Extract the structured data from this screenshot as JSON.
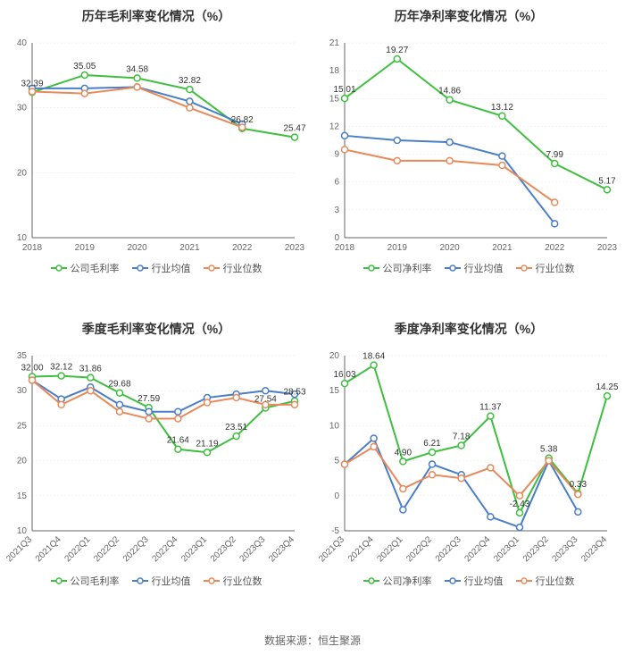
{
  "source_text": "数据来源：恒生聚源",
  "colors": {
    "company": "#3fbf3f",
    "industry_mean": "#4a7ec8",
    "industry_median": "#e8895a",
    "axis": "#666666",
    "grid": "#e6e6e6",
    "text": "#333333",
    "bg": "#ffffff"
  },
  "title_fontsize": 14,
  "tick_fontsize": 10,
  "legend_fontsize": 11,
  "marker_radius": 3.5,
  "line_width": 2,
  "panels": [
    {
      "id": "p1",
      "title": "历年毛利率变化情况（%）",
      "legend": [
        "公司毛利率",
        "行业均值",
        "行业位数"
      ],
      "x_labels": [
        "2018",
        "2019",
        "2020",
        "2021",
        "2022",
        "2023"
      ],
      "x_rotate": 0,
      "y_min": 10,
      "y_max": 40,
      "y_step": 10,
      "label_series_index": 0,
      "point_labels": [
        "32.39",
        "35.05",
        "34.58",
        "32.82",
        "26.82",
        "25.47"
      ],
      "series": [
        {
          "color_key": "company",
          "values": [
            32.39,
            35.05,
            34.58,
            32.82,
            26.82,
            25.47
          ]
        },
        {
          "color_key": "industry_mean",
          "values": [
            33.0,
            33.0,
            33.2,
            31.0,
            27.5,
            null
          ]
        },
        {
          "color_key": "industry_median",
          "values": [
            32.5,
            32.2,
            33.2,
            30.0,
            27.0,
            null
          ]
        }
      ]
    },
    {
      "id": "p2",
      "title": "历年净利率变化情况（%）",
      "legend": [
        "公司净利率",
        "行业均值",
        "行业位数"
      ],
      "x_labels": [
        "2018",
        "2019",
        "2020",
        "2021",
        "2022",
        "2023"
      ],
      "x_rotate": 0,
      "y_min": 0,
      "y_max": 21,
      "y_step": 3,
      "label_series_index": 0,
      "point_labels": [
        "15.01",
        "19.27",
        "14.86",
        "13.12",
        "7.99",
        "5.17"
      ],
      "series": [
        {
          "color_key": "company",
          "values": [
            15.01,
            19.27,
            14.86,
            13.12,
            7.99,
            5.17
          ]
        },
        {
          "color_key": "industry_mean",
          "values": [
            11.0,
            10.5,
            10.3,
            8.8,
            1.5,
            null
          ]
        },
        {
          "color_key": "industry_median",
          "values": [
            9.5,
            8.3,
            8.3,
            7.8,
            3.8,
            null
          ]
        }
      ]
    },
    {
      "id": "p3",
      "title": "季度毛利率变化情况（%）",
      "legend": [
        "公司毛利率",
        "行业均值",
        "行业位数"
      ],
      "x_labels": [
        "2021Q3",
        "2021Q4",
        "2022Q1",
        "2022Q2",
        "2022Q3",
        "2022Q4",
        "2023Q1",
        "2023Q2",
        "2023Q3",
        "2023Q4"
      ],
      "x_rotate": -45,
      "y_min": 10,
      "y_max": 35,
      "y_step": 5,
      "label_series_index": 0,
      "point_labels": [
        "32.00",
        "32.12",
        "31.86",
        "29.68",
        "27.59",
        "21.64",
        "21.19",
        "23.51",
        "27.54",
        "28.53"
      ],
      "series": [
        {
          "color_key": "company",
          "values": [
            32.0,
            32.12,
            31.86,
            29.68,
            27.59,
            21.64,
            21.19,
            23.51,
            27.54,
            28.53
          ]
        },
        {
          "color_key": "industry_mean",
          "values": [
            31.5,
            28.8,
            30.5,
            28.0,
            27.0,
            27.0,
            29.0,
            29.5,
            30.0,
            29.5
          ]
        },
        {
          "color_key": "industry_median",
          "values": [
            31.5,
            28.0,
            30.0,
            27.0,
            26.0,
            26.0,
            28.3,
            29.0,
            28.0,
            28.0
          ]
        }
      ]
    },
    {
      "id": "p4",
      "title": "季度净利率变化情况（%）",
      "legend": [
        "公司净利率",
        "行业均值",
        "行业位数"
      ],
      "x_labels": [
        "2021Q3",
        "2021Q4",
        "2022Q1",
        "2022Q2",
        "2022Q3",
        "2022Q4",
        "2023Q1",
        "2023Q2",
        "2023Q3",
        "2023Q4"
      ],
      "x_rotate": -45,
      "y_min": -5,
      "y_max": 20,
      "y_step": 5,
      "label_series_index": 0,
      "point_labels": [
        "16.03",
        "18.64",
        "4.90",
        "6.21",
        "7.18",
        "11.37",
        "-2.43",
        "5.38",
        "0.33",
        "14.25"
      ],
      "series": [
        {
          "color_key": "company",
          "values": [
            16.03,
            18.64,
            4.9,
            6.21,
            7.18,
            11.37,
            -2.43,
            5.38,
            0.33,
            14.25
          ]
        },
        {
          "color_key": "industry_mean",
          "values": [
            4.5,
            8.2,
            -2.0,
            4.5,
            3.0,
            -3.0,
            -4.5,
            5.0,
            -2.3,
            null
          ]
        },
        {
          "color_key": "industry_median",
          "values": [
            4.5,
            7.0,
            1.0,
            3.0,
            2.5,
            4.0,
            0.0,
            5.0,
            0.2,
            null
          ]
        }
      ]
    }
  ]
}
